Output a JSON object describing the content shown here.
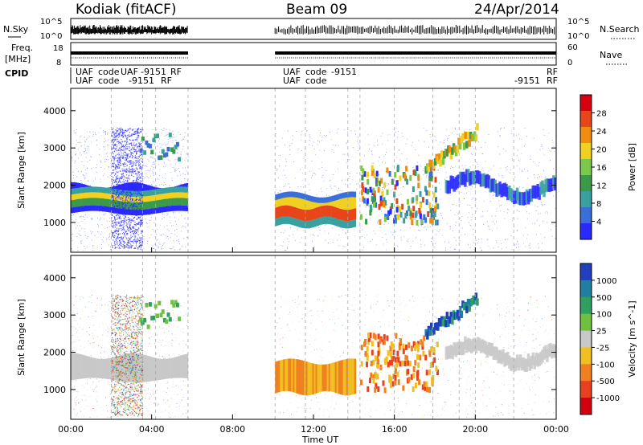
{
  "header": {
    "station": "Kodiak (fitACF)",
    "beam": "Beam 09",
    "date": "24/Apr/2014"
  },
  "panels": {
    "nsky_label": "N.Sky",
    "nsky_ticks": [
      "10^5",
      "10^0"
    ],
    "nsearch_label": "N.Search",
    "nsearch_ticks": [
      "10^5",
      "10^0"
    ],
    "freq_label_1": "Freq.",
    "freq_label_2": "[MHz]",
    "freq_ticks": [
      "18",
      "8"
    ],
    "nave_label": "Nave",
    "nave_ticks": [
      "60",
      "0"
    ],
    "cpid_label": "CPID",
    "cpid_row1": [
      "UAF",
      "code",
      "UAF",
      "-9151",
      "RF",
      "UAF",
      "code",
      "-9151",
      "RF"
    ],
    "cpid_row2": [
      "UAF",
      "code",
      "-9151",
      "RF",
      "UAF",
      "code",
      "-9151",
      "RF"
    ]
  },
  "colors": {
    "power_scale": [
      "#2a2aff",
      "#3a6fd8",
      "#39a0a0",
      "#3a9a4a",
      "#7cc84a",
      "#f0d020",
      "#f08c10",
      "#e8451a",
      "#d80010"
    ],
    "velocity_scale": [
      "#2040c0",
      "#2080a0",
      "#30a060",
      "#70c040",
      "#c8c8c8",
      "#f0c020",
      "#f08020",
      "#e84020",
      "#d00010"
    ]
  },
  "chart_data": [
    {
      "type": "heatmap",
      "title": "Power",
      "xlabel": "Time UT",
      "ylabel": "Slant Range [km]",
      "x_ticks": [
        "00:00",
        "04:00",
        "08:00",
        "12:00",
        "16:00",
        "20:00",
        "00:00"
      ],
      "x_hours": [
        0,
        4,
        8,
        12,
        16,
        20,
        24
      ],
      "y_ticks": [
        1000,
        2000,
        3000,
        4000
      ],
      "ylim": [
        200,
        4600
      ],
      "colorbar_label": "Power [dB]",
      "colorbar_ticks": [
        4,
        8,
        12,
        16,
        20,
        24,
        28
      ],
      "data_gap_hours": [
        5.8,
        10.1
      ]
    },
    {
      "type": "heatmap",
      "title": "Velocity",
      "xlabel": "Time UT",
      "ylabel": "Slant Range [km]",
      "x_ticks": [
        "00:00",
        "04:00",
        "08:00",
        "12:00",
        "16:00",
        "20:00",
        "00:00"
      ],
      "x_hours": [
        0,
        4,
        8,
        12,
        16,
        20,
        24
      ],
      "y_ticks": [
        1000,
        2000,
        3000,
        4000
      ],
      "ylim": [
        200,
        4600
      ],
      "colorbar_label": "Velocity [m s^-1]",
      "colorbar_ticks": [
        1000,
        500,
        100,
        25,
        -25,
        -100,
        -500,
        -1000
      ],
      "data_gap_hours": [
        5.8,
        10.1
      ]
    }
  ],
  "xaxis_title": "Time UT"
}
